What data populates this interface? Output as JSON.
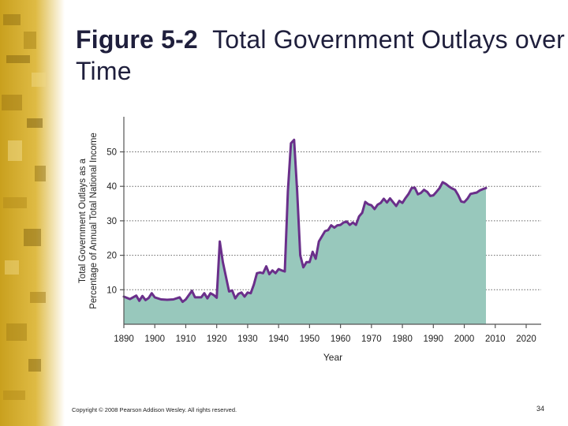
{
  "slide": {
    "title_bold": "Figure 5-2",
    "title_rest": "Total Government Outlays over Time",
    "copyright": "Copyright © 2008 Pearson Addison Wesley. All rights reserved.",
    "page_number": "34"
  },
  "colors": {
    "line": "#6a2f8a",
    "fill": "#98c8bc",
    "axis": "#555555",
    "grid": "#666666",
    "sidebar_base": "#c9a01e",
    "sidebar_fade": "#ffffff"
  },
  "chart_data": {
    "type": "area",
    "title": "",
    "xlabel": "Year",
    "ylabel_line1": "Total Government Outlays as a",
    "ylabel_line2": "Percentage of Annual Total National Income",
    "xlim": [
      1890,
      2025
    ],
    "ylim": [
      0,
      60
    ],
    "x_ticks": [
      1890,
      1900,
      1910,
      1920,
      1930,
      1940,
      1950,
      1960,
      1970,
      1980,
      1990,
      2000,
      2010,
      2020
    ],
    "y_ticks": [
      10,
      20,
      30,
      40,
      50
    ],
    "grid": "horizontal dotted",
    "series": [
      {
        "name": "Total Government Outlays",
        "points": [
          [
            1890,
            8
          ],
          [
            1892,
            7.3
          ],
          [
            1894,
            8.3
          ],
          [
            1895,
            6.8
          ],
          [
            1896,
            8.2
          ],
          [
            1897,
            7
          ],
          [
            1898,
            7.6
          ],
          [
            1899,
            9
          ],
          [
            1900,
            7.8
          ],
          [
            1902,
            7.2
          ],
          [
            1904,
            7.1
          ],
          [
            1906,
            7.2
          ],
          [
            1908,
            7.8
          ],
          [
            1909,
            6.5
          ],
          [
            1910,
            7.2
          ],
          [
            1912,
            9.7
          ],
          [
            1913,
            7.8
          ],
          [
            1915,
            7.8
          ],
          [
            1916,
            9
          ],
          [
            1917,
            7.5
          ],
          [
            1918,
            9
          ],
          [
            1919,
            8.5
          ],
          [
            1920,
            7.7
          ],
          [
            1921,
            24
          ],
          [
            1922,
            18
          ],
          [
            1924,
            9.5
          ],
          [
            1925,
            9.8
          ],
          [
            1926,
            7.5
          ],
          [
            1927,
            8.8
          ],
          [
            1928,
            9.2
          ],
          [
            1929,
            8
          ],
          [
            1930,
            9.2
          ],
          [
            1931,
            9
          ],
          [
            1932,
            11.5
          ],
          [
            1933,
            14.8
          ],
          [
            1934,
            15
          ],
          [
            1935,
            14.8
          ],
          [
            1936,
            16.8
          ],
          [
            1937,
            14.5
          ],
          [
            1938,
            15.6
          ],
          [
            1939,
            14.8
          ],
          [
            1940,
            16
          ],
          [
            1941,
            15.6
          ],
          [
            1942,
            15.3
          ],
          [
            1943,
            38.5
          ],
          [
            1944,
            52.5
          ],
          [
            1945,
            53.5
          ],
          [
            1946,
            38.5
          ],
          [
            1947,
            20
          ],
          [
            1948,
            16.5
          ],
          [
            1949,
            18
          ],
          [
            1950,
            18
          ],
          [
            1951,
            21
          ],
          [
            1952,
            19
          ],
          [
            1953,
            24
          ],
          [
            1955,
            27
          ],
          [
            1956,
            27.3
          ],
          [
            1957,
            28.7
          ],
          [
            1958,
            28
          ],
          [
            1959,
            28.7
          ],
          [
            1960,
            28.8
          ],
          [
            1961,
            29.5
          ],
          [
            1962,
            29.8
          ],
          [
            1963,
            28.8
          ],
          [
            1964,
            29.5
          ],
          [
            1965,
            28.8
          ],
          [
            1966,
            31.3
          ],
          [
            1967,
            32.3
          ],
          [
            1968,
            35.5
          ],
          [
            1969,
            34.8
          ],
          [
            1970,
            34.5
          ],
          [
            1971,
            33.4
          ],
          [
            1972,
            34.7
          ],
          [
            1973,
            35.2
          ],
          [
            1974,
            36.4
          ],
          [
            1975,
            35.3
          ],
          [
            1976,
            36.5
          ],
          [
            1977,
            35.4
          ],
          [
            1978,
            34.3
          ],
          [
            1979,
            35.8
          ],
          [
            1980,
            35.2
          ],
          [
            1981,
            36.6
          ],
          [
            1982,
            37.8
          ],
          [
            1983,
            39.5
          ],
          [
            1984,
            39.6
          ],
          [
            1985,
            37.7
          ],
          [
            1986,
            38.1
          ],
          [
            1987,
            39
          ],
          [
            1988,
            38.4
          ],
          [
            1989,
            37.2
          ],
          [
            1990,
            37.4
          ],
          [
            1991,
            38.4
          ],
          [
            1992,
            39.5
          ],
          [
            1993,
            41.2
          ],
          [
            1994,
            40.7
          ],
          [
            1995,
            40
          ],
          [
            1996,
            39.4
          ],
          [
            1997,
            39
          ],
          [
            1998,
            37.5
          ],
          [
            1999,
            35.6
          ],
          [
            2000,
            35.4
          ],
          [
            2001,
            36.4
          ],
          [
            2002,
            37.8
          ],
          [
            2003,
            38
          ],
          [
            2004,
            38.2
          ],
          [
            2005,
            38.8
          ],
          [
            2006,
            39.2
          ],
          [
            2007,
            39.5
          ]
        ]
      }
    ]
  }
}
